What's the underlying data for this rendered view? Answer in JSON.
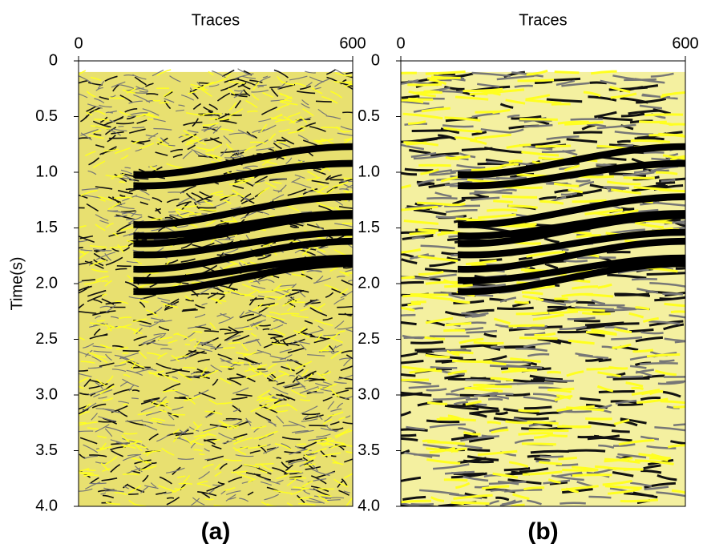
{
  "y_label": "Time(s)",
  "panels": [
    {
      "x_label": "Traces",
      "xlim": [
        0,
        600
      ],
      "xticks": [
        0,
        600
      ],
      "ylim": [
        0,
        4
      ],
      "yticks": [
        0,
        0.5,
        {
          "value": 1,
          "label": "1.0"
        },
        1.5,
        {
          "value": 2,
          "label": "2.0"
        },
        2.5,
        {
          "value": 3,
          "label": "3.0"
        },
        3.5,
        {
          "value": 4,
          "label": "4.0"
        }
      ],
      "caption": "(a)"
    },
    {
      "x_label": "Traces",
      "xlim": [
        0,
        600
      ],
      "xticks": [
        0,
        600
      ],
      "ylim": [
        0,
        4
      ],
      "yticks": [
        0,
        0.5,
        {
          "value": 1,
          "label": "1.0"
        },
        1.5,
        {
          "value": 2,
          "label": "2.0"
        },
        2.5,
        {
          "value": 3,
          "label": "3.0"
        },
        3.5,
        {
          "value": 4,
          "label": "4.0"
        }
      ],
      "caption": "(b)"
    }
  ]
}
